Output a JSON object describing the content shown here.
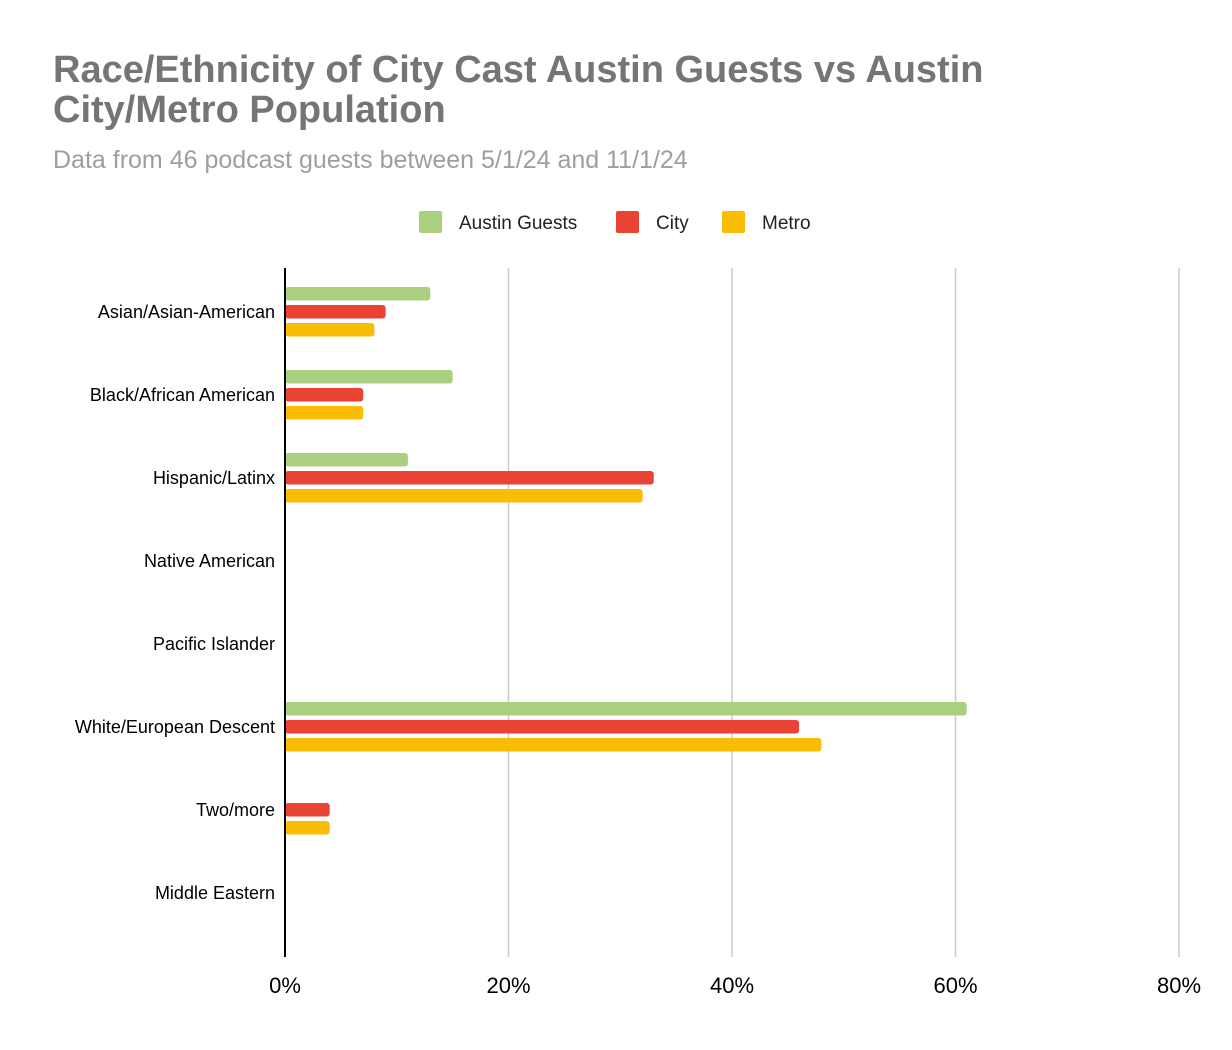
{
  "chart_data": {
    "type": "bar",
    "orientation": "horizontal",
    "title": "Race/Ethnicity of City Cast Austin Guests vs Austin City/Metro Population",
    "subtitle": "Data from 46 podcast guests between 5/1/24 and 11/1/24",
    "categories": [
      "Asian/Asian-American",
      "Black/African American",
      "Hispanic/Latinx",
      "Native American",
      "Pacific Islander",
      "White/European Descent",
      "Two/more",
      "Middle Eastern"
    ],
    "series": [
      {
        "name": "Austin Guests",
        "color": "#aacf7e",
        "values": [
          13,
          15,
          11,
          0,
          0,
          61,
          0,
          0
        ]
      },
      {
        "name": "City",
        "color": "#ea4335",
        "values": [
          9,
          7,
          33,
          0,
          0,
          46,
          4,
          0
        ]
      },
      {
        "name": "Metro",
        "color": "#fbbc04",
        "values": [
          8,
          7,
          32,
          0,
          0,
          48,
          4,
          0
        ]
      }
    ],
    "xlim": [
      0,
      80
    ],
    "xticks": [
      0,
      20,
      40,
      60,
      80
    ],
    "xtick_labels": [
      "0%",
      "20%",
      "40%",
      "60%",
      "80%"
    ],
    "grid": "vertical",
    "legend_position": "top-center"
  }
}
